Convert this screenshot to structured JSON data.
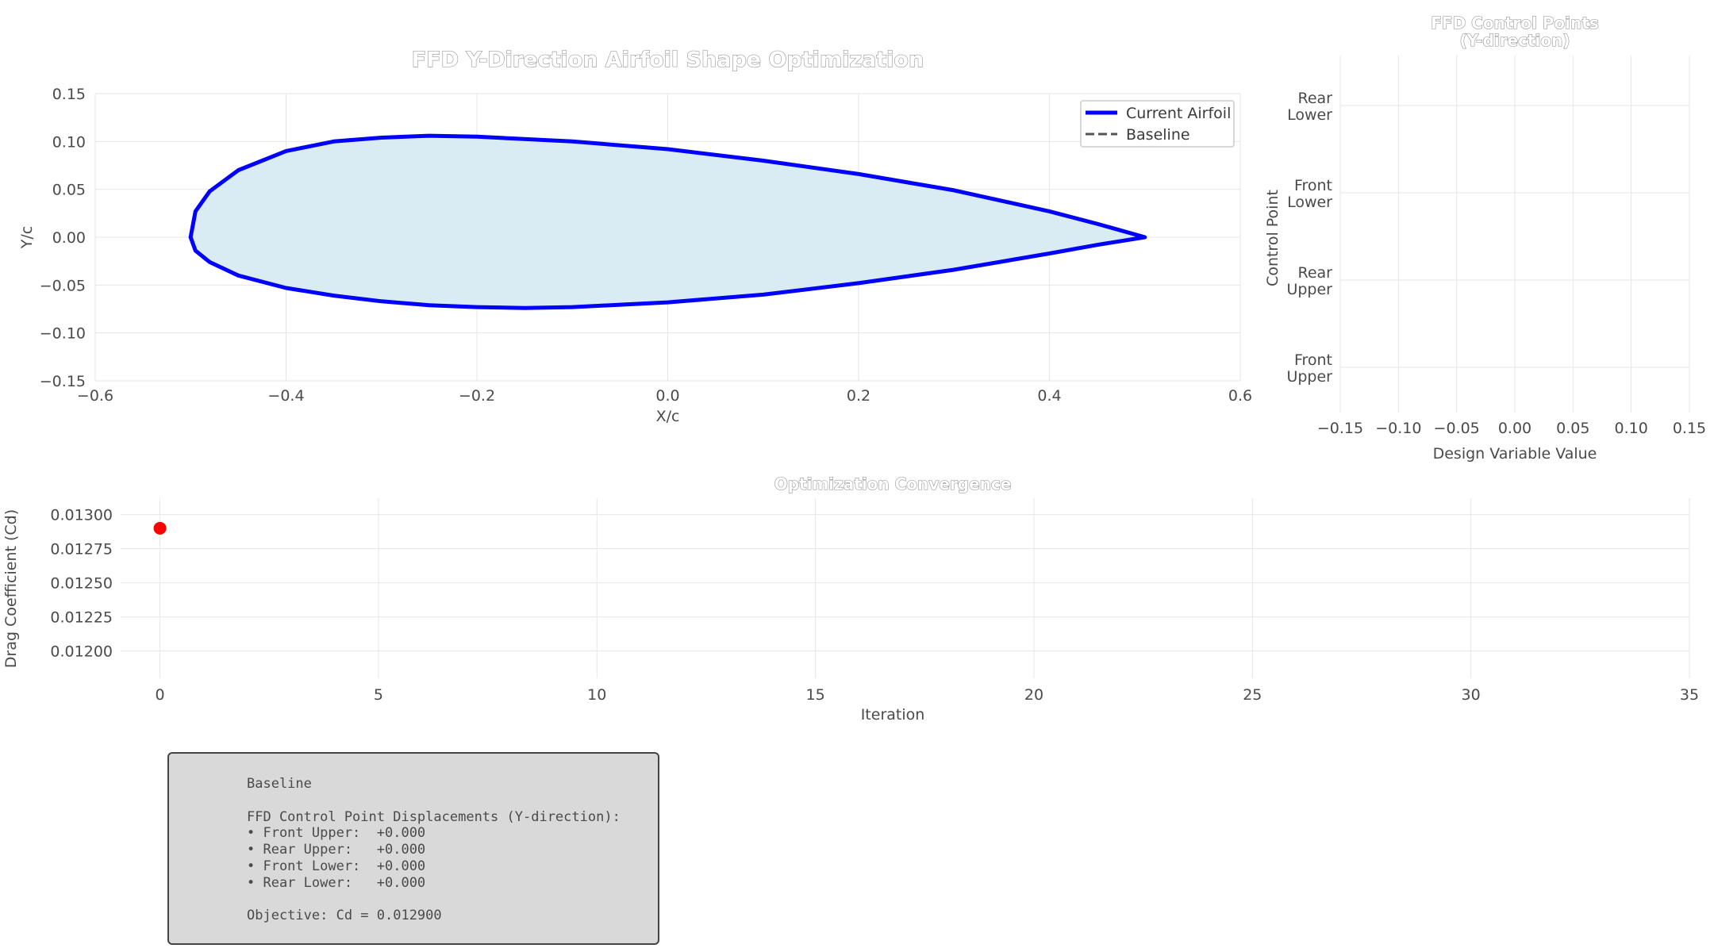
{
  "chart_data": [
    {
      "type": "line",
      "title": "FFD Y-Direction Airfoil Shape Optimization",
      "xlabel": "X/c",
      "ylabel": "Y/c",
      "xlim": [
        -0.6,
        0.6
      ],
      "ylim": [
        -0.15,
        0.15
      ],
      "xticks": [
        "−0.6",
        "−0.4",
        "−0.2",
        "0.0",
        "0.2",
        "0.4",
        "0.6"
      ],
      "yticks": [
        "−0.15",
        "−0.10",
        "−0.05",
        "0.00",
        "0.05",
        "0.10",
        "0.15"
      ],
      "grid": true,
      "legend_position": "top-right",
      "series": [
        {
          "name": "Current Airfoil",
          "style": "solid",
          "color": "#0000ff",
          "fill": "#d9ecf3",
          "upper": {
            "x": [
              0.5,
              0.45,
              0.4,
              0.3,
              0.2,
              0.1,
              0.0,
              -0.1,
              -0.2,
              -0.25,
              -0.3,
              -0.35,
              -0.4,
              -0.45,
              -0.48,
              -0.495,
              -0.5
            ],
            "y": [
              0.0,
              0.014,
              0.027,
              0.049,
              0.066,
              0.08,
              0.092,
              0.1,
              0.105,
              0.106,
              0.104,
              0.1,
              0.09,
              0.07,
              0.048,
              0.027,
              0.0
            ]
          },
          "lower": {
            "x": [
              -0.5,
              -0.495,
              -0.48,
              -0.45,
              -0.4,
              -0.35,
              -0.3,
              -0.25,
              -0.2,
              -0.15,
              -0.1,
              0.0,
              0.1,
              0.2,
              0.3,
              0.4,
              0.45,
              0.5
            ],
            "y": [
              0.0,
              -0.014,
              -0.026,
              -0.04,
              -0.053,
              -0.061,
              -0.067,
              -0.071,
              -0.073,
              -0.074,
              -0.073,
              -0.068,
              -0.06,
              -0.048,
              -0.034,
              -0.017,
              -0.008,
              0.0
            ]
          }
        },
        {
          "name": "Baseline",
          "style": "dashed",
          "color": "#555555"
        }
      ]
    },
    {
      "type": "bar",
      "title": "FFD Control Points\n(Y-direction)",
      "xlabel": "Design Variable Value",
      "ylabel": "Control Point",
      "xlim": [
        -0.15,
        0.15
      ],
      "xticks": [
        "−0.15",
        "−0.10",
        "−0.05",
        "0.00",
        "0.05",
        "0.10",
        "0.15"
      ],
      "categories": [
        "Front\nUpper",
        "Rear\nUpper",
        "Front\nLower",
        "Rear\nLower"
      ],
      "values": [
        0.0,
        0.0,
        0.0,
        0.0
      ],
      "grid": true
    },
    {
      "type": "scatter",
      "title": "Optimization Convergence",
      "xlabel": "Iteration",
      "ylabel": "Drag Coefficient (Cd)",
      "xlim": [
        -0.9,
        35
      ],
      "ylim": [
        0.0118,
        0.01312
      ],
      "xticks": [
        "0",
        "5",
        "10",
        "15",
        "20",
        "25",
        "30",
        "35"
      ],
      "yticks": [
        "0.01200",
        "0.01225",
        "0.01250",
        "0.01275",
        "0.01300"
      ],
      "grid": true,
      "points": [
        {
          "x": 0,
          "y": 0.0129
        }
      ],
      "color": "#ff0000"
    }
  ],
  "info_box": {
    "lines": [
      "Baseline",
      "",
      "FFD Control Point Displacements (Y-direction):",
      "• Front Upper:  +0.000",
      "• Rear Upper:   +0.000",
      "• Front Lower:  +0.000",
      "• Rear Lower:   +0.000",
      "",
      "Objective: Cd = 0.012900"
    ]
  }
}
